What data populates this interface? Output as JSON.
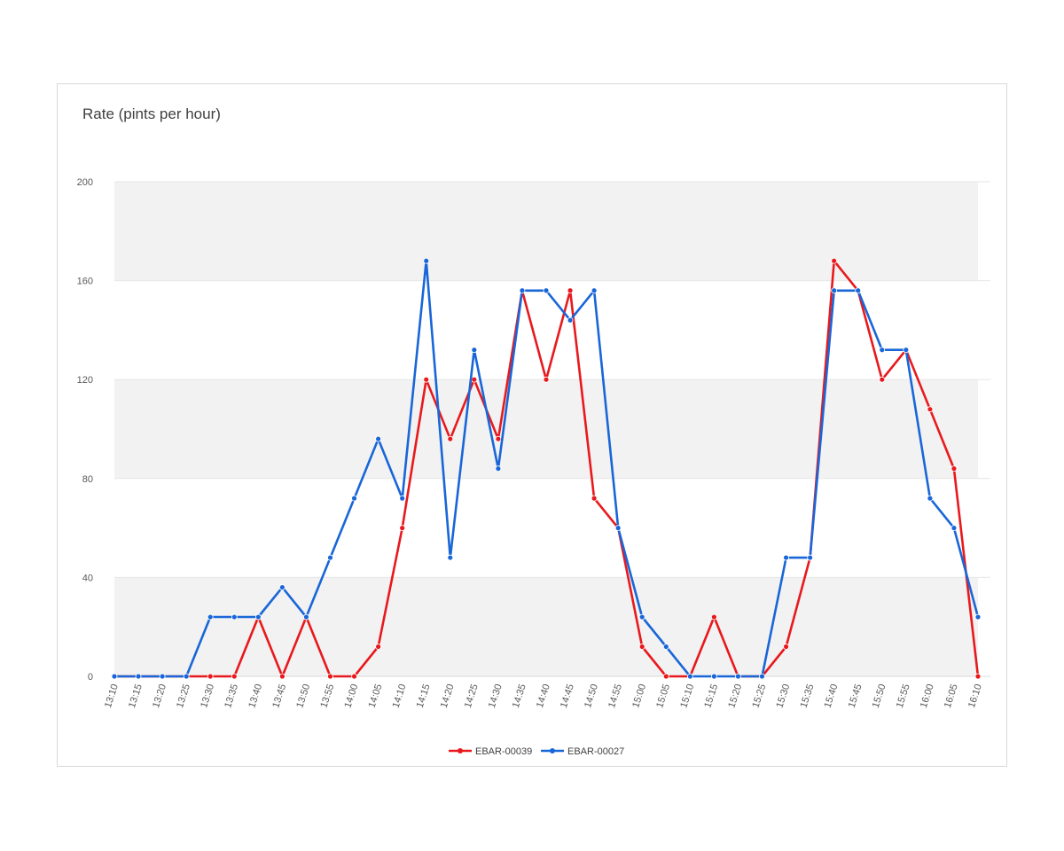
{
  "chart_data": {
    "type": "line",
    "title": "Rate (pints per hour)",
    "xlabel": "",
    "ylabel": "",
    "ylim": [
      0,
      200
    ],
    "yticks": [
      0,
      40,
      80,
      120,
      160,
      200
    ],
    "grid": "alternating horizontal bands",
    "legend_position": "bottom",
    "categories": [
      "13:10",
      "13:15",
      "13:20",
      "13:25",
      "13:30",
      "13:35",
      "13:40",
      "13:45",
      "13:50",
      "13:55",
      "14:00",
      "14:05",
      "14:10",
      "14:15",
      "14:20",
      "14:25",
      "14:30",
      "14:35",
      "14:40",
      "14:45",
      "14:50",
      "14:55",
      "15:00",
      "15:05",
      "15:10",
      "15:15",
      "15:20",
      "15:25",
      "15:30",
      "15:35",
      "15:40",
      "15:45",
      "15:50",
      "15:55",
      "16:00",
      "16:05",
      "16:10"
    ],
    "series": [
      {
        "name": "EBAR-00039",
        "color": "#e8191d",
        "values": [
          0,
          0,
          0,
          0,
          0,
          0,
          24,
          0,
          24,
          0,
          0,
          12,
          60,
          120,
          96,
          120,
          96,
          156,
          120,
          156,
          72,
          60,
          12,
          0,
          0,
          24,
          0,
          0,
          12,
          48,
          168,
          156,
          120,
          132,
          108,
          84,
          0
        ]
      },
      {
        "name": "EBAR-00027",
        "color": "#1966d8",
        "values": [
          0,
          0,
          0,
          0,
          24,
          24,
          24,
          36,
          24,
          48,
          72,
          96,
          72,
          168,
          48,
          132,
          84,
          156,
          156,
          144,
          156,
          60,
          24,
          12,
          0,
          0,
          0,
          0,
          48,
          48,
          156,
          156,
          132,
          132,
          72,
          60,
          24
        ]
      }
    ]
  }
}
